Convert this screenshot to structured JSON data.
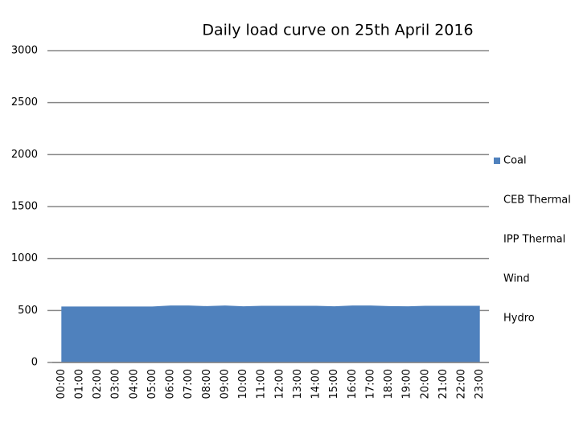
{
  "chart_data": {
    "type": "stacked-area",
    "title": "Daily load curve on 25th April 2016",
    "categories": [
      "00:00",
      "01:00",
      "02:00",
      "03:00",
      "04:00",
      "05:00",
      "06:00",
      "07:00",
      "08:00",
      "09:00",
      "10:00",
      "11:00",
      "12:00",
      "13:00",
      "14:00",
      "15:00",
      "16:00",
      "17:00",
      "18:00",
      "19:00",
      "20:00",
      "21:00",
      "22:00",
      "23:00"
    ],
    "series": [
      {
        "name": "Coal",
        "color": "#4f81bd",
        "values": [
          538,
          538,
          538,
          538,
          538,
          538,
          548,
          548,
          542,
          548,
          540,
          545,
          545,
          545,
          545,
          540,
          548,
          548,
          542,
          540,
          545,
          545,
          545,
          545
        ]
      },
      {
        "name": "CEB Thermal",
        "color": "#ffffff",
        "values": [
          0,
          0,
          0,
          0,
          0,
          0,
          0,
          0,
          0,
          0,
          0,
          0,
          0,
          0,
          0,
          0,
          0,
          0,
          0,
          0,
          0,
          0,
          0,
          0
        ]
      },
      {
        "name": "IPP Thermal",
        "color": "#ffffff",
        "values": [
          0,
          0,
          0,
          0,
          0,
          0,
          0,
          0,
          0,
          0,
          0,
          0,
          0,
          0,
          0,
          0,
          0,
          0,
          0,
          0,
          0,
          0,
          0,
          0
        ]
      },
      {
        "name": "Wind",
        "color": "#ffffff",
        "values": [
          0,
          0,
          0,
          0,
          0,
          0,
          0,
          0,
          0,
          0,
          0,
          0,
          0,
          0,
          0,
          0,
          0,
          0,
          0,
          0,
          0,
          0,
          0,
          0
        ]
      },
      {
        "name": "Hydro",
        "color": "#ffffff",
        "values": [
          0,
          0,
          0,
          0,
          0,
          0,
          0,
          0,
          0,
          0,
          0,
          0,
          0,
          0,
          0,
          0,
          0,
          0,
          0,
          0,
          0,
          0,
          0,
          0
        ]
      }
    ],
    "ylim": [
      0,
      3000
    ],
    "yticks": [
      0,
      500,
      1000,
      1500,
      2000,
      2500,
      3000
    ],
    "grid": true
  }
}
